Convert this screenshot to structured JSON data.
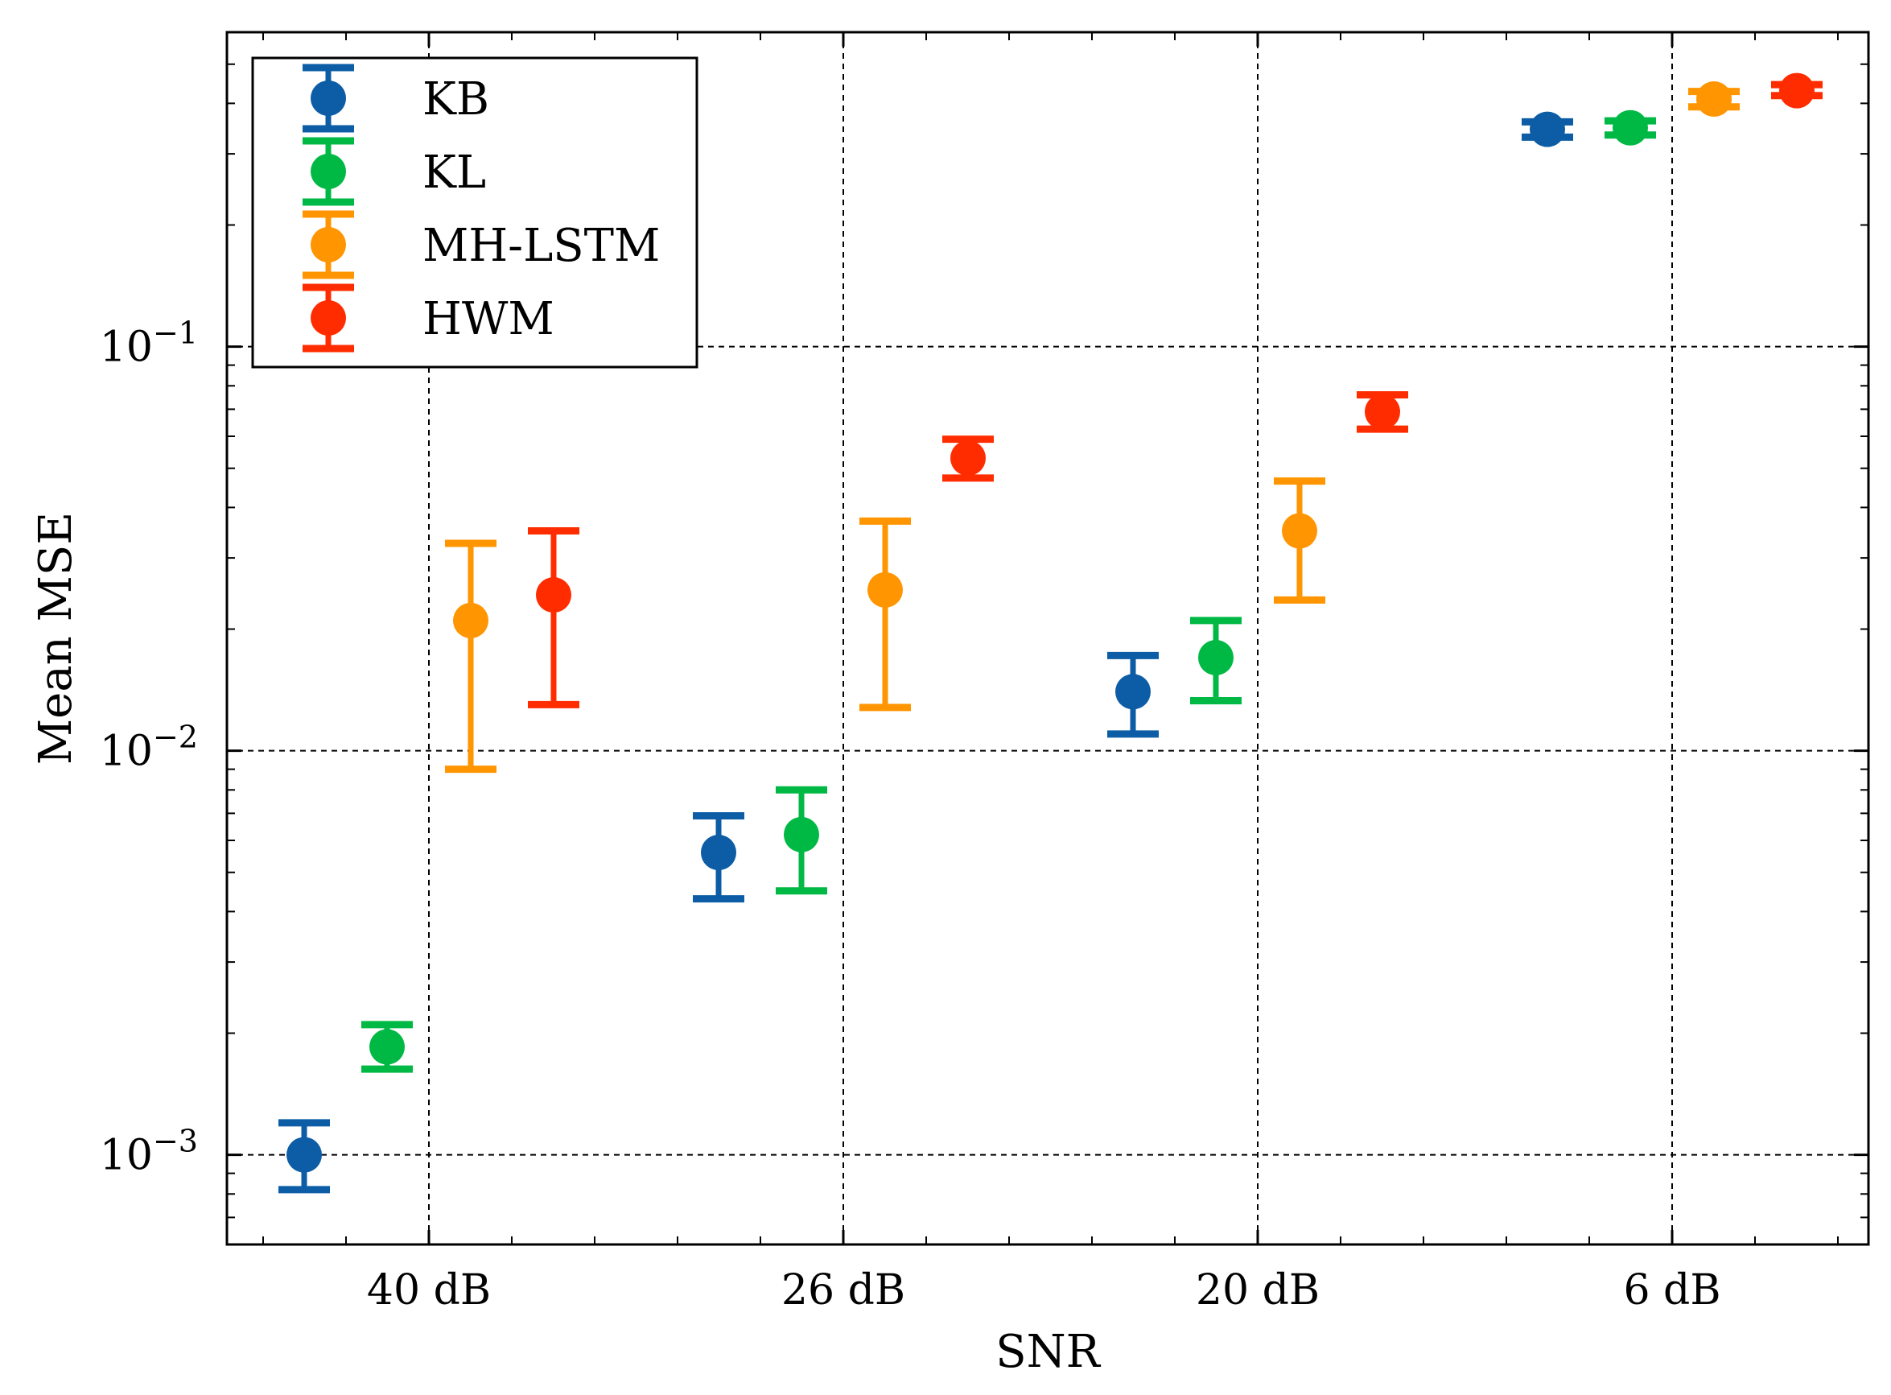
{
  "chart_data": {
    "type": "scatter",
    "xlabel": "SNR",
    "ylabel": "Mean MSE",
    "yscale": "log",
    "ylim": [
      0.0006,
      0.6
    ],
    "categories": [
      "40 dB",
      "26 dB",
      "20 dB",
      "6 dB"
    ],
    "y_ticks": [
      {
        "value": 0.001,
        "base": "10",
        "exp": "−3"
      },
      {
        "value": 0.01,
        "base": "10",
        "exp": "−2"
      },
      {
        "value": 0.1,
        "base": "10",
        "exp": "−1"
      }
    ],
    "grid": true,
    "legend_position": "top-left",
    "series": [
      {
        "name": "KB",
        "color": "#0C5DA5",
        "values": [
          0.001,
          0.0056,
          0.014,
          0.345
        ],
        "err_low": [
          0.00082,
          0.0043,
          0.011,
          0.33
        ],
        "err_high": [
          0.0012,
          0.0069,
          0.0172,
          0.36
        ]
      },
      {
        "name": "KL",
        "color": "#00B945",
        "values": [
          0.00185,
          0.0062,
          0.017,
          0.348
        ],
        "err_low": [
          0.00163,
          0.0045,
          0.0133,
          0.334
        ],
        "err_high": [
          0.0021,
          0.008,
          0.021,
          0.362
        ]
      },
      {
        "name": "MH-LSTM",
        "color": "#FF9500",
        "values": [
          0.021,
          0.025,
          0.035,
          0.41
        ],
        "err_low": [
          0.009,
          0.0128,
          0.0236,
          0.392
        ],
        "err_high": [
          0.0326,
          0.037,
          0.0465,
          0.428
        ]
      },
      {
        "name": "HWM",
        "color": "#FF2C00",
        "values": [
          0.0243,
          0.053,
          0.069,
          0.43
        ],
        "err_low": [
          0.013,
          0.0473,
          0.0625,
          0.418
        ],
        "err_high": [
          0.035,
          0.059,
          0.076,
          0.445
        ]
      }
    ]
  }
}
